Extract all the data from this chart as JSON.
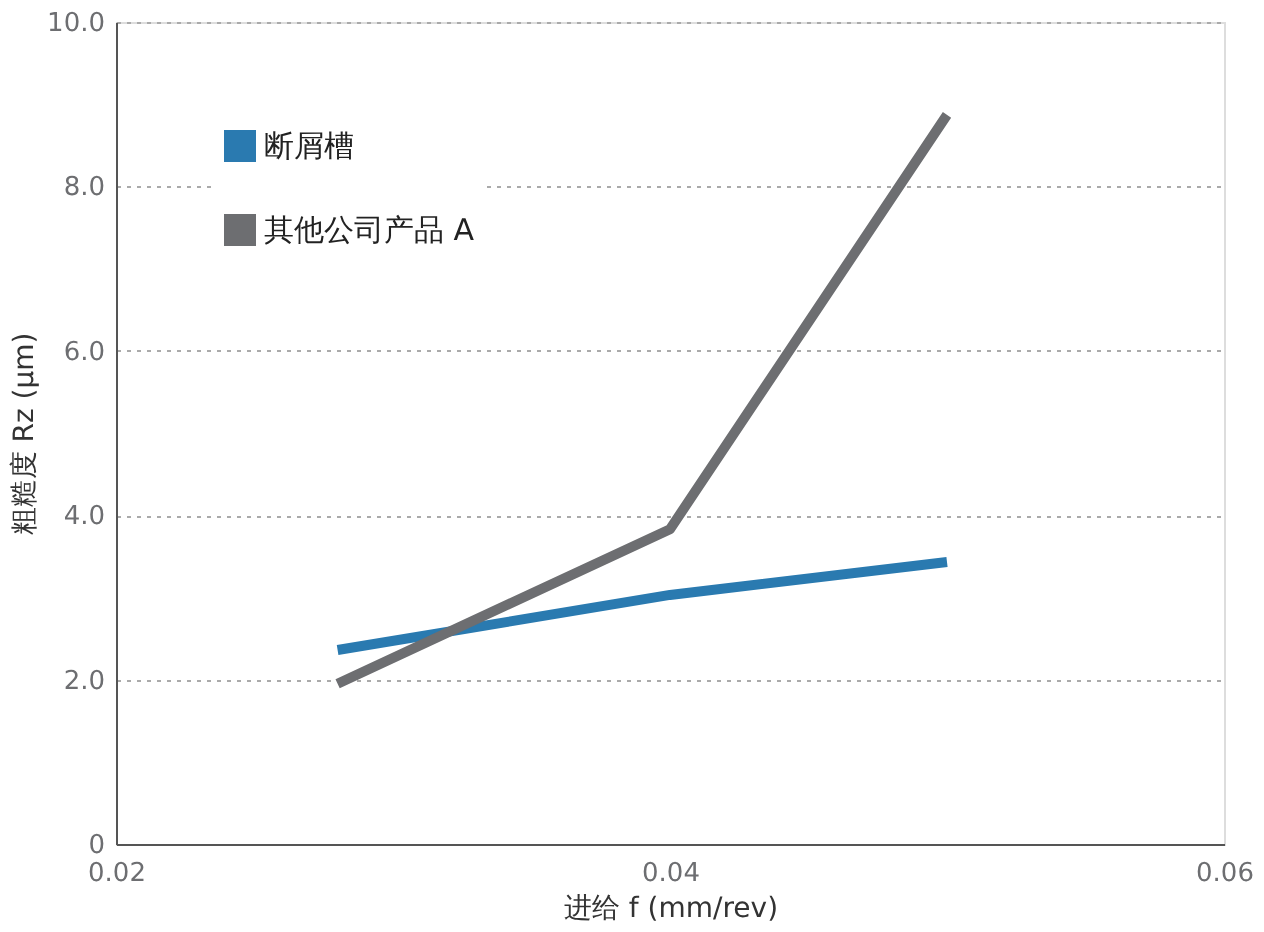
{
  "chart_data": {
    "type": "line",
    "xlabel": "进给 f (mm/rev)",
    "ylabel": "粗糙度 Rz (μm)",
    "x": [
      0.028,
      0.04,
      0.05
    ],
    "series": [
      {
        "name": "断屑槽",
        "color": "#2a7ab0",
        "values": [
          2.36,
          3.03,
          3.43
        ]
      },
      {
        "name": "其他公司产品 A",
        "color": "#6d6e71",
        "values": [
          1.95,
          3.83,
          8.87
        ]
      }
    ],
    "xlim": [
      0.02,
      0.06
    ],
    "xticks": [
      0.02,
      0.04,
      0.06
    ],
    "ylim": [
      0,
      10
    ],
    "yticks": [
      0,
      {
        "value": 2,
        "label": "2.0"
      },
      {
        "value": 4,
        "label": "4.0"
      },
      {
        "value": 6,
        "label": "6.0"
      },
      {
        "value": 8,
        "label": "8.0"
      },
      {
        "value": 10,
        "label": "10.0"
      }
    ],
    "grid": "y",
    "legend": "top left",
    "marker": "none",
    "line_style": "solid"
  }
}
